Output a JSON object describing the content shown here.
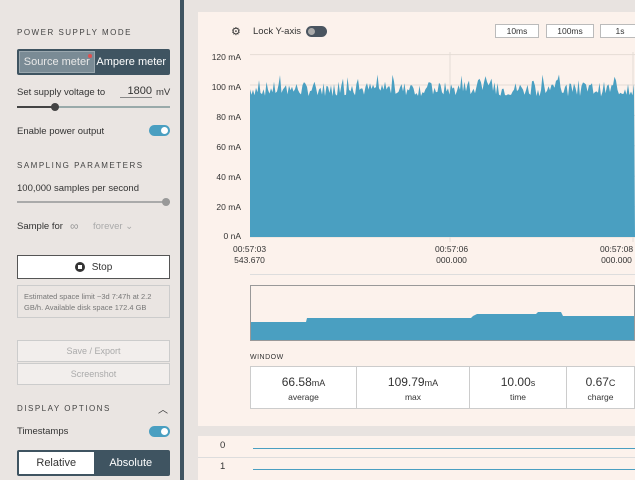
{
  "sidebar": {
    "power_supply_mode": {
      "title": "POWER SUPPLY MODE",
      "options": [
        "Source meter",
        "Ampere meter"
      ],
      "selected": "Source meter"
    },
    "supply_voltage": {
      "label": "Set supply voltage to",
      "value": "1800",
      "unit": "mV",
      "level": 0.25
    },
    "enable_power": {
      "label": "Enable power output",
      "on": true
    },
    "sampling": {
      "title": "SAMPLING PARAMETERS",
      "rate_label": "100,000 samples per second",
      "rate_level": 1.0,
      "sample_for_label": "Sample for",
      "infinity": "∞",
      "duration": "forever"
    },
    "stop_label": "Stop",
    "info_text": "Estimated space limit ~3d 7:47h at 2.2 GB/h. Available disk space 172.4 GB",
    "save_export_label": "Save / Export",
    "screenshot_label": "Screenshot",
    "display_options": {
      "title": "DISPLAY OPTIONS",
      "timestamps_label": "Timestamps",
      "timestamps_on": true,
      "time_modes": [
        "Relative",
        "Absolute"
      ],
      "time_mode_selected": "Relative"
    }
  },
  "chart": {
    "lock_y_label": "Lock Y-axis",
    "lock_y_on": false,
    "window_buttons": [
      "10ms",
      "100ms",
      "1s"
    ],
    "y_ticks": [
      "120 mA",
      "100 mA",
      "80 mA",
      "60 mA",
      "40 mA",
      "20 mA",
      "0 nA"
    ],
    "x_ticks": [
      {
        "time": "00:57:03",
        "sub": "543.670"
      },
      {
        "time": "00:57:06",
        "sub": "000.000"
      },
      {
        "time": "00:57:08",
        "sub": "000.000"
      }
    ],
    "window_label": "WINDOW",
    "stats": [
      {
        "value": "66.58",
        "unit": "mA",
        "label": "average"
      },
      {
        "value": "109.79",
        "unit": "mA",
        "label": "max"
      },
      {
        "value": "10.00",
        "unit": "s",
        "label": "time"
      },
      {
        "value": "0.67",
        "unit": "C",
        "label": "charge"
      }
    ],
    "digital_channels": [
      "0",
      "1"
    ],
    "accent": "#4a9fc1"
  }
}
